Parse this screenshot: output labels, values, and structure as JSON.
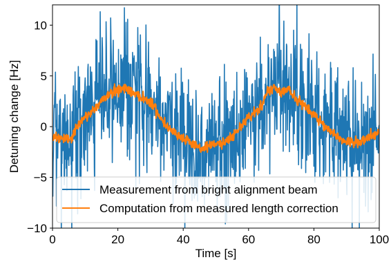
{
  "chart_data": {
    "type": "line",
    "xlabel": "Time [s]",
    "ylabel": "Detuning change [Hz]",
    "xlim": [
      0,
      100
    ],
    "ylim": [
      -10,
      12
    ],
    "xticks": [
      0,
      20,
      40,
      60,
      80,
      100
    ],
    "xtick_labels": [
      "0",
      "20",
      "40",
      "60",
      "80",
      "100"
    ],
    "yticks": [
      -10,
      -5,
      0,
      5,
      10
    ],
    "ytick_labels": [
      "−10",
      "−5",
      "0",
      "5",
      "10"
    ],
    "grid": false,
    "legend_position": "lower-center",
    "series": [
      {
        "name": "Measurement from bright alignment beam",
        "color": "#1f77b4",
        "x": [
          0,
          2,
          4,
          6,
          8,
          10,
          12,
          14,
          16,
          18,
          20,
          22,
          24,
          26,
          28,
          30,
          32,
          34,
          36,
          38,
          40,
          42,
          44,
          46,
          48,
          50,
          52,
          54,
          56,
          58,
          60,
          62,
          64,
          66,
          68,
          70,
          72,
          74,
          76,
          78,
          80,
          82,
          84,
          86,
          88,
          90,
          92,
          94,
          96,
          98,
          100
        ],
        "y": [
          -0.9,
          -1.1,
          -1.4,
          -1.0,
          0.2,
          0.9,
          1.5,
          2.1,
          2.9,
          3.3,
          3.6,
          3.9,
          3.5,
          3.1,
          2.8,
          2.5,
          1.5,
          0.4,
          -0.2,
          -0.7,
          -1.1,
          -1.6,
          -2.0,
          -2.2,
          -1.8,
          -1.6,
          -1.7,
          -1.3,
          -0.6,
          0.2,
          0.9,
          1.4,
          2.0,
          3.6,
          3.9,
          3.4,
          3.8,
          2.9,
          2.3,
          1.8,
          1.2,
          0.5,
          -0.1,
          -0.6,
          -1.2,
          -1.5,
          -1.6,
          -1.5,
          -1.3,
          -0.8,
          -0.6
        ],
        "noise_std": 3.2
      },
      {
        "name": "Computation from measured length correction",
        "color": "#ff7f0e",
        "x": [
          0,
          2,
          4,
          6,
          8,
          10,
          12,
          14,
          16,
          18,
          20,
          22,
          24,
          26,
          28,
          30,
          32,
          34,
          36,
          38,
          40,
          42,
          44,
          46,
          48,
          50,
          52,
          54,
          56,
          58,
          60,
          62,
          64,
          66,
          68,
          70,
          72,
          74,
          76,
          78,
          80,
          82,
          84,
          86,
          88,
          90,
          92,
          94,
          96,
          98,
          100
        ],
        "y": [
          -0.9,
          -1.1,
          -1.4,
          -1.0,
          0.2,
          0.9,
          1.5,
          2.1,
          2.9,
          3.3,
          3.6,
          3.9,
          3.5,
          3.1,
          2.8,
          2.5,
          1.5,
          0.4,
          -0.2,
          -0.7,
          -1.1,
          -1.6,
          -2.0,
          -2.2,
          -1.8,
          -1.6,
          -1.7,
          -1.3,
          -0.6,
          0.2,
          0.9,
          1.4,
          2.0,
          3.6,
          3.9,
          3.4,
          3.8,
          2.9,
          2.3,
          1.8,
          1.2,
          0.5,
          -0.1,
          -0.6,
          -1.2,
          -1.5,
          -1.6,
          -1.5,
          -1.3,
          -0.8,
          -0.6
        ],
        "noise_std": 0.25
      }
    ]
  }
}
